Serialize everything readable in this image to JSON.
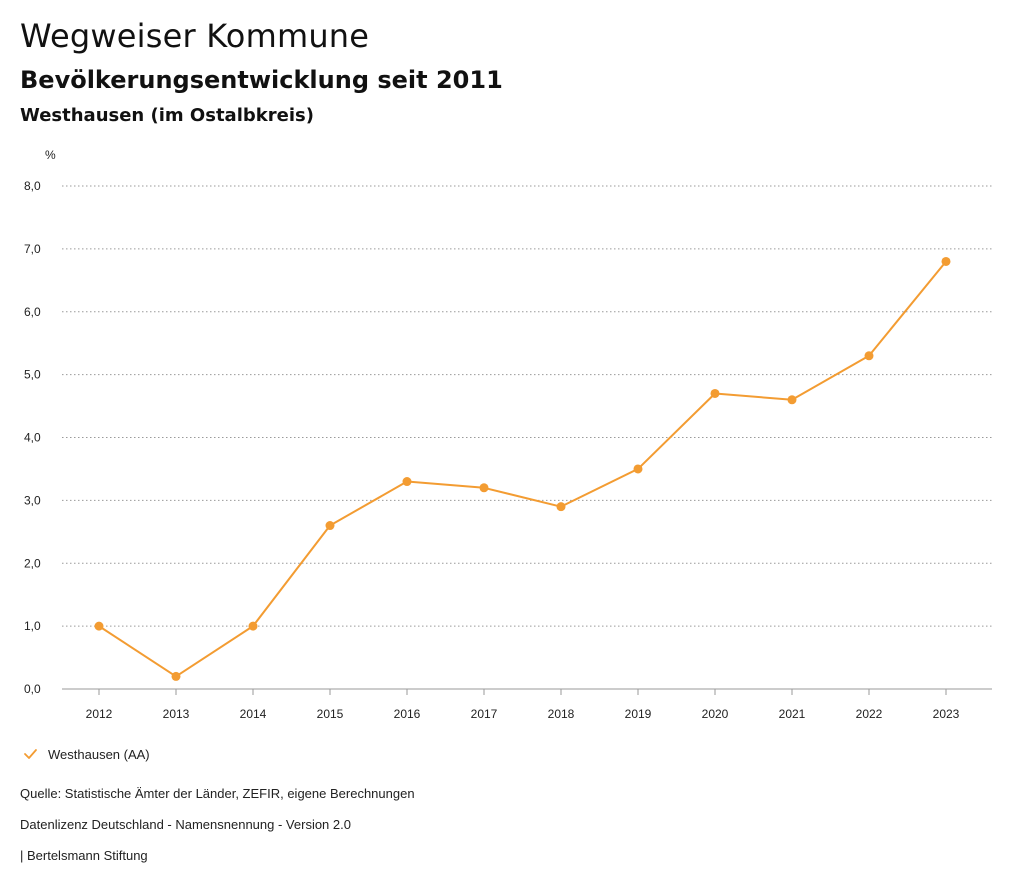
{
  "header": {
    "title": "Wegweiser Kommune",
    "subtitle": "Bevölkerungsentwicklung seit 2011",
    "region": "Westhausen (im Ostalbkreis)"
  },
  "chart_data": {
    "type": "line",
    "unit_label": "%",
    "x": [
      "2012",
      "2013",
      "2014",
      "2015",
      "2016",
      "2017",
      "2018",
      "2019",
      "2020",
      "2021",
      "2022",
      "2023"
    ],
    "series": [
      {
        "name": "Westhausen (AA)",
        "color": "#f39c32",
        "values": [
          1.0,
          0.2,
          1.0,
          2.6,
          3.3,
          3.2,
          2.9,
          3.5,
          4.7,
          4.6,
          5.3,
          6.8
        ]
      }
    ],
    "y_ticks": [
      "0,0",
      "1,0",
      "2,0",
      "3,0",
      "4,0",
      "5,0",
      "6,0",
      "7,0",
      "8,0"
    ],
    "ylim": [
      0,
      8
    ],
    "grid": true,
    "legend_position": "bottom-left"
  },
  "legend": {
    "label": "Westhausen (AA)"
  },
  "footer": {
    "source": "Quelle: Statistische Ämter der Länder, ZEFIR, eigene Berechnungen",
    "license": "Datenlizenz Deutschland - Namensnennung - Version 2.0",
    "publisher": "| Bertelsmann Stiftung"
  }
}
